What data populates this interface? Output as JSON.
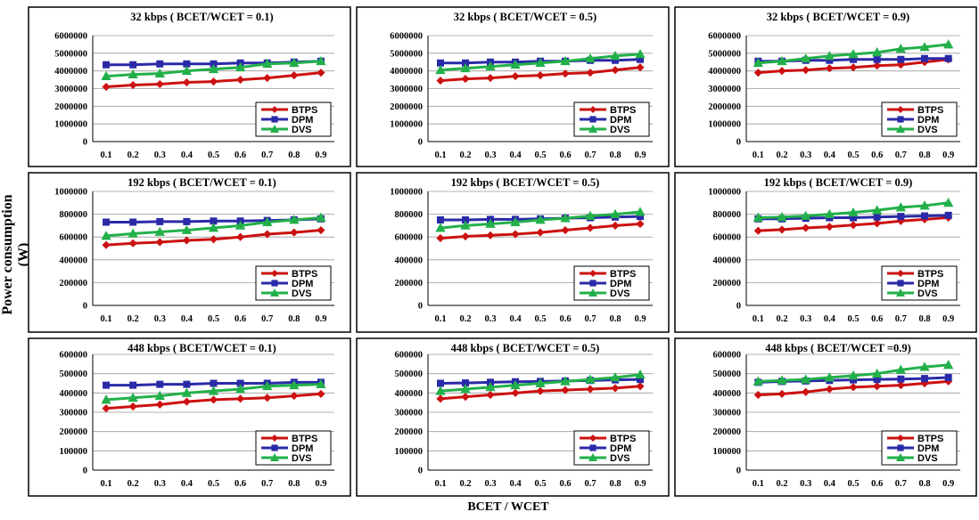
{
  "y_axis_label": "Power consumption (W)",
  "x_axis_label": "BCET  / WCET",
  "legend_labels": [
    "BTPS",
    "DPM",
    "DVS"
  ],
  "colors": {
    "BTPS": "#cc1111",
    "DPM": "#2a2aa8",
    "DVS": "#22b04a"
  },
  "chart_data": [
    {
      "type": "line",
      "title": "32 kbps ( BCET/WCET  = 0.1)",
      "x": [
        "0.1",
        "0.2",
        "0.3",
        "0.4",
        "0.5",
        "0.6",
        "0.7",
        "0.8",
        "0.9"
      ],
      "ylim": [
        0,
        6000000
      ],
      "yticks": [
        "0",
        "1000000",
        "2000000",
        "3000000",
        "4000000",
        "5000000",
        "6000000"
      ],
      "series": [
        {
          "name": "BTPS",
          "values": [
            3100000,
            3200000,
            3250000,
            3350000,
            3400000,
            3500000,
            3600000,
            3750000,
            3900000
          ]
        },
        {
          "name": "DPM",
          "values": [
            4350000,
            4350000,
            4400000,
            4400000,
            4400000,
            4450000,
            4450000,
            4500000,
            4550000
          ]
        },
        {
          "name": "DVS",
          "values": [
            3700000,
            3800000,
            3850000,
            4000000,
            4100000,
            4200000,
            4400000,
            4450000,
            4550000
          ]
        }
      ]
    },
    {
      "type": "line",
      "title": "32 kbps ( BCET/WCET  = 0.5)",
      "x": [
        "0.1",
        "0.2",
        "0.3",
        "0.4",
        "0.5",
        "0.6",
        "0.7",
        "0.8",
        "0.9"
      ],
      "ylim": [
        0,
        6000000
      ],
      "yticks": [
        "0",
        "1000000",
        "2000000",
        "3000000",
        "4000000",
        "5000000",
        "6000000"
      ],
      "series": [
        {
          "name": "BTPS",
          "values": [
            3450000,
            3550000,
            3600000,
            3700000,
            3750000,
            3850000,
            3900000,
            4050000,
            4200000
          ]
        },
        {
          "name": "DPM",
          "values": [
            4450000,
            4450000,
            4500000,
            4500000,
            4550000,
            4550000,
            4600000,
            4600000,
            4650000
          ]
        },
        {
          "name": "DVS",
          "values": [
            4050000,
            4150000,
            4250000,
            4350000,
            4450000,
            4550000,
            4700000,
            4850000,
            4950000
          ]
        }
      ]
    },
    {
      "type": "line",
      "title": "32 kbps ( BCET/WCET  = 0.9)",
      "x": [
        "0.1",
        "0.2",
        "0.3",
        "0.4",
        "0.5",
        "0.6",
        "0.7",
        "0.8",
        "0.9"
      ],
      "ylim": [
        0,
        6000000
      ],
      "yticks": [
        "0",
        "1000000",
        "2000000",
        "3000000",
        "4000000",
        "5000000",
        "6000000"
      ],
      "series": [
        {
          "name": "BTPS",
          "values": [
            3900000,
            4000000,
            4050000,
            4150000,
            4200000,
            4300000,
            4350000,
            4500000,
            4650000
          ]
        },
        {
          "name": "DPM",
          "values": [
            4550000,
            4550000,
            4600000,
            4600000,
            4650000,
            4650000,
            4650000,
            4700000,
            4700000
          ]
        },
        {
          "name": "DVS",
          "values": [
            4450000,
            4550000,
            4700000,
            4850000,
            4950000,
            5050000,
            5250000,
            5350000,
            5500000
          ]
        }
      ]
    },
    {
      "type": "line",
      "title": "192 kbps ( BCET/WCET  = 0.1)",
      "x": [
        "0.1",
        "0.2",
        "0.3",
        "0.4",
        "0.5",
        "0.6",
        "0.7",
        "0.8",
        "0.9"
      ],
      "ylim": [
        0,
        1000000
      ],
      "yticks": [
        "0",
        "200000",
        "400000",
        "600000",
        "800000",
        "1000000"
      ],
      "series": [
        {
          "name": "BTPS",
          "values": [
            530000,
            545000,
            555000,
            570000,
            580000,
            600000,
            625000,
            640000,
            660000
          ]
        },
        {
          "name": "DPM",
          "values": [
            730000,
            730000,
            735000,
            735000,
            740000,
            740000,
            745000,
            750000,
            760000
          ]
        },
        {
          "name": "DVS",
          "values": [
            610000,
            630000,
            645000,
            660000,
            680000,
            700000,
            730000,
            750000,
            770000
          ]
        }
      ]
    },
    {
      "type": "line",
      "title": "192 kbps ( BCET/WCET  = 0.5)",
      "x": [
        "0.1",
        "0.2",
        "0.3",
        "0.4",
        "0.5",
        "0.6",
        "0.7",
        "0.8",
        "0.9"
      ],
      "ylim": [
        0,
        1000000
      ],
      "yticks": [
        "0",
        "200000",
        "400000",
        "600000",
        "800000",
        "1000000"
      ],
      "series": [
        {
          "name": "BTPS",
          "values": [
            590000,
            605000,
            615000,
            625000,
            640000,
            660000,
            680000,
            700000,
            715000
          ]
        },
        {
          "name": "DPM",
          "values": [
            750000,
            750000,
            755000,
            755000,
            760000,
            765000,
            770000,
            775000,
            780000
          ]
        },
        {
          "name": "DVS",
          "values": [
            680000,
            700000,
            715000,
            730000,
            750000,
            765000,
            785000,
            800000,
            820000
          ]
        }
      ]
    },
    {
      "type": "line",
      "title": "192 kbps ( BCET/WCET  = 0.9)",
      "x": [
        "0.1",
        "0.2",
        "0.3",
        "0.4",
        "0.5",
        "0.6",
        "0.7",
        "0.8",
        "0.9"
      ],
      "ylim": [
        0,
        1000000
      ],
      "yticks": [
        "0",
        "200000",
        "400000",
        "600000",
        "800000",
        "1000000"
      ],
      "series": [
        {
          "name": "BTPS",
          "values": [
            655000,
            665000,
            680000,
            690000,
            705000,
            720000,
            740000,
            755000,
            770000
          ]
        },
        {
          "name": "DPM",
          "values": [
            760000,
            760000,
            765000,
            770000,
            770000,
            775000,
            780000,
            785000,
            790000
          ]
        },
        {
          "name": "DVS",
          "values": [
            770000,
            775000,
            785000,
            800000,
            815000,
            835000,
            860000,
            875000,
            900000
          ]
        }
      ]
    },
    {
      "type": "line",
      "title": "448 kbps ( BCET/WCET  = 0.1)",
      "x": [
        "0.1",
        "0.2",
        "0.3",
        "0.4",
        "0.5",
        "0.6",
        "0.7",
        "0.8",
        "0.9"
      ],
      "ylim": [
        0,
        600000
      ],
      "yticks": [
        "0",
        "100000",
        "200000",
        "300000",
        "400000",
        "500000",
        "600000"
      ],
      "series": [
        {
          "name": "BTPS",
          "values": [
            320000,
            330000,
            340000,
            355000,
            365000,
            370000,
            375000,
            385000,
            395000
          ]
        },
        {
          "name": "DPM",
          "values": [
            440000,
            440000,
            445000,
            445000,
            450000,
            450000,
            450000,
            455000,
            455000
          ]
        },
        {
          "name": "DVS",
          "values": [
            365000,
            375000,
            385000,
            400000,
            410000,
            420000,
            435000,
            440000,
            445000
          ]
        }
      ]
    },
    {
      "type": "line",
      "title": "448 kbps ( BCET/WCET  = 0.5)",
      "x": [
        "0.1",
        "0.2",
        "0.3",
        "0.4",
        "0.5",
        "0.6",
        "0.7",
        "0.8",
        "0.9"
      ],
      "ylim": [
        0,
        600000
      ],
      "yticks": [
        "0",
        "100000",
        "200000",
        "300000",
        "400000",
        "500000",
        "600000"
      ],
      "series": [
        {
          "name": "BTPS",
          "values": [
            370000,
            380000,
            390000,
            400000,
            410000,
            415000,
            420000,
            425000,
            435000
          ]
        },
        {
          "name": "DPM",
          "values": [
            450000,
            452000,
            455000,
            458000,
            460000,
            462000,
            465000,
            468000,
            470000
          ]
        },
        {
          "name": "DVS",
          "values": [
            410000,
            420000,
            430000,
            440000,
            450000,
            460000,
            470000,
            480000,
            495000
          ]
        }
      ]
    },
    {
      "type": "line",
      "title": "448 kbps ( BCET/WCET  =0.9)",
      "x": [
        "0.1",
        "0.2",
        "0.3",
        "0.4",
        "0.5",
        "0.6",
        "0.7",
        "0.8",
        "0.9"
      ],
      "ylim": [
        0,
        600000
      ],
      "yticks": [
        "0",
        "100000",
        "200000",
        "300000",
        "400000",
        "500000",
        "600000"
      ],
      "series": [
        {
          "name": "BTPS",
          "values": [
            390000,
            395000,
            405000,
            420000,
            430000,
            435000,
            440000,
            450000,
            460000
          ]
        },
        {
          "name": "DPM",
          "values": [
            455000,
            460000,
            462000,
            465000,
            468000,
            470000,
            472000,
            475000,
            480000
          ]
        },
        {
          "name": "DVS",
          "values": [
            460000,
            465000,
            470000,
            480000,
            490000,
            500000,
            520000,
            535000,
            545000
          ]
        }
      ]
    }
  ]
}
